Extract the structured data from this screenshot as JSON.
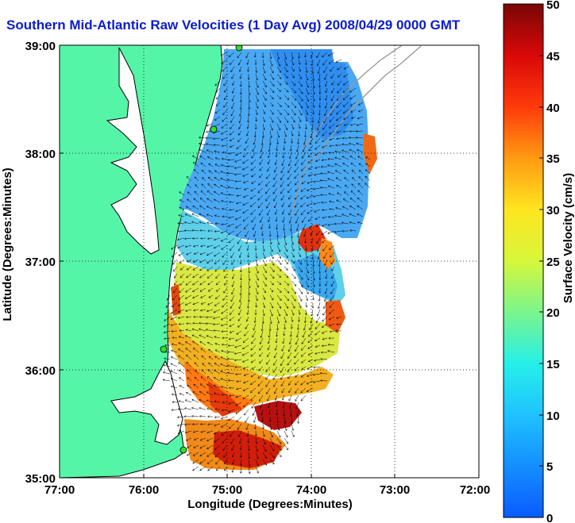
{
  "title": "Southern Mid-Atlantic Raw Velocities (1 Day Avg) 2008/04/29 0000 GMT",
  "map": {
    "xlabel": "Longitude (Degrees:Minutes)",
    "ylabel": "Latitude (Degrees:Minutes)",
    "lon_range": [
      -77,
      -72
    ],
    "lat_range": [
      35,
      39
    ],
    "x_ticks": [
      "77:00",
      "76:00",
      "75:00",
      "74:00",
      "73:00",
      "72:00"
    ],
    "y_ticks": [
      "39:00",
      "38:00",
      "37:00",
      "36:00",
      "35:00"
    ],
    "grid": "dotted",
    "colors": {
      "land": "#55f5a8",
      "coast_line": "#000000",
      "bathymetry": "#a0a0a0",
      "arrow": "#000000",
      "station": "#33dd33"
    }
  },
  "colorbar": {
    "label": "Surface Velocity (cm/s)",
    "ticks": [
      "50",
      "45",
      "40",
      "35",
      "30",
      "25",
      "20",
      "15",
      "10",
      "5",
      "0"
    ],
    "min": 0,
    "max": 50,
    "colormap": "jet"
  }
}
